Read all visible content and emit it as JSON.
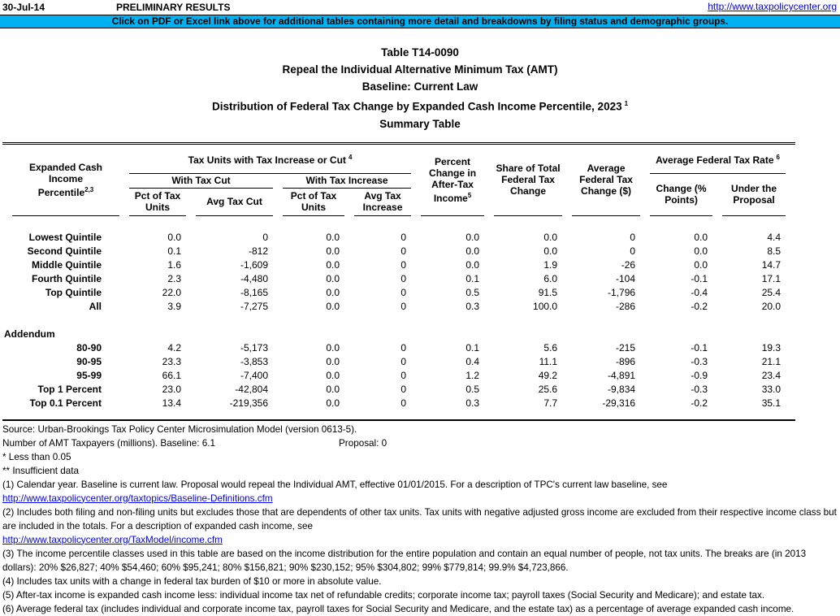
{
  "header_bar": {
    "date": "30-Jul-14",
    "status": "PRELIMINARY RESULTS",
    "url": "http://www.taxpolicycenter.org"
  },
  "banner": {
    "text": "Click on PDF or Excel link above for additional tables containing more detail and breakdowns by filing status and demographic groups.",
    "background": "#00B0F0"
  },
  "colors": {
    "banner_bg": "#00B0F0",
    "link": "#0000FF"
  },
  "title": {
    "line1": "Table T14-0090",
    "line2": "Repeal the Individual Alternative Minimum Tax (AMT)",
    "line3": "Baseline: Current Law",
    "line4": "Distribution of Federal Tax Change by Expanded Cash Income Percentile, 2023",
    "line4_sup": "1",
    "line5": "Summary Table"
  },
  "table": {
    "stub_header": {
      "text": "Expanded Cash Income\nPercentile",
      "sup": "2,3"
    },
    "group_tax_units": {
      "text": "Tax Units with Tax Increase or Cut",
      "sup": "4"
    },
    "subgroup_cut": "With Tax Cut",
    "subgroup_increase": "With Tax Increase",
    "col_pct_units_cut": {
      "text": "Pct of Tax\nUnits"
    },
    "col_avg_tax_cut": {
      "text": "Avg Tax Cut"
    },
    "col_pct_units_inc": {
      "text": "Pct of Tax\nUnits"
    },
    "col_avg_tax_increase": {
      "text": "Avg Tax\nIncrease"
    },
    "col_after_tax": {
      "text": "Percent\nChange in\nAfter-Tax\nIncome",
      "sup": "5"
    },
    "col_share": {
      "text": "Share of Total\nFederal Tax\nChange"
    },
    "col_avg_change": {
      "text": "Average\nFederal Tax\nChange ($)"
    },
    "group_avg_rate": {
      "text": "Average Federal Tax Rate",
      "sup": "6"
    },
    "col_change_pts": {
      "text": "Change (%\nPoints)"
    },
    "col_under_proposal": {
      "text": "Under the\nProposal"
    },
    "rows": [
      {
        "label": "Lowest Quintile",
        "values": [
          "0.0",
          "0",
          "0.0",
          "0",
          "0.0",
          "0.0",
          "0",
          "0.0",
          "4.4"
        ]
      },
      {
        "label": "Second Quintile",
        "values": [
          "0.1",
          "-812",
          "0.0",
          "0",
          "0.0",
          "0.0",
          "0",
          "0.0",
          "8.5"
        ]
      },
      {
        "label": "Middle Quintile",
        "values": [
          "1.6",
          "-1,609",
          "0.0",
          "0",
          "0.0",
          "1.9",
          "-26",
          "0.0",
          "14.7"
        ]
      },
      {
        "label": "Fourth Quintile",
        "values": [
          "2.3",
          "-4,480",
          "0.0",
          "0",
          "0.1",
          "6.0",
          "-104",
          "-0.1",
          "17.1"
        ]
      },
      {
        "label": "Top Quintile",
        "values": [
          "22.0",
          "-8,165",
          "0.0",
          "0",
          "0.5",
          "91.5",
          "-1,796",
          "-0.4",
          "25.4"
        ]
      },
      {
        "label": "All",
        "values": [
          "3.9",
          "-7,275",
          "0.0",
          "0",
          "0.3",
          "100.0",
          "-286",
          "-0.2",
          "20.0"
        ]
      }
    ],
    "addendum_label": "Addendum",
    "addendum_rows": [
      {
        "label": "80-90",
        "values": [
          "4.2",
          "-5,173",
          "0.0",
          "0",
          "0.1",
          "5.6",
          "-215",
          "-0.1",
          "19.3"
        ]
      },
      {
        "label": "90-95",
        "values": [
          "23.3",
          "-3,853",
          "0.0",
          "0",
          "0.4",
          "11.1",
          "-896",
          "-0.3",
          "21.1"
        ]
      },
      {
        "label": "95-99",
        "values": [
          "66.1",
          "-7,400",
          "0.0",
          "0",
          "1.2",
          "49.2",
          "-4,891",
          "-0.9",
          "23.4"
        ]
      },
      {
        "label": "Top 1 Percent",
        "values": [
          "23.0",
          "-42,804",
          "0.0",
          "0",
          "0.5",
          "25.6",
          "-9,834",
          "-0.3",
          "33.0"
        ]
      },
      {
        "label": "Top 0.1 Percent",
        "values": [
          "13.4",
          "-219,356",
          "0.0",
          "0",
          "0.3",
          "7.7",
          "-29,316",
          "-0.2",
          "35.1"
        ]
      }
    ]
  },
  "footer": {
    "source": "Source: Urban-Brookings Tax Policy Center Microsimulation Model (version 0613-5).",
    "amt_left": "Number of AMT Taxpayers (millions).  Baseline: 6.1",
    "amt_right": "Proposal: 0",
    "note_star": "* Less than 0.05",
    "note_double_star": "** Insufficient data",
    "footnotes": [
      {
        "text": "(1) Calendar year. Baseline is current law. Proposal would repeal the Individual AMT, effective 01/01/2015. For a description of TPC's current law baseline, see"
      },
      {
        "link": "http://www.taxpolicycenter.org/taxtopics/Baseline-Definitions.cfm"
      },
      {
        "text": "(2) Includes both filing and non-filing units but excludes those that are dependents of other tax units. Tax units with negative adjusted gross income are excluded from their respective income class but are included in the totals. For a description of expanded cash income, see"
      },
      {
        "link": "http://www.taxpolicycenter.org/TaxModel/income.cfm"
      },
      {
        "text": "(3) The income percentile classes used in this table are based on the income distribution for the entire population and contain an equal number of people, not tax units. The breaks are (in 2013 dollars): 20% $26,827; 40% $54,460; 60% $95,241; 80% $156,821; 90% $230,152; 95% $304,802; 99% $779,814; 99.9% $4,723,866."
      },
      {
        "text": "(4) Includes tax units with a change in federal tax burden of $10 or more in absolute value."
      },
      {
        "text": "(5) After-tax income is expanded cash income less: individual income tax net of refundable credits; corporate income tax; payroll taxes (Social Security and Medicare); and estate tax."
      },
      {
        "text": "(6) Average federal tax (includes individual and corporate income tax, payroll taxes for Social Security and Medicare, and the estate tax) as a percentage of average expanded cash income."
      }
    ]
  }
}
